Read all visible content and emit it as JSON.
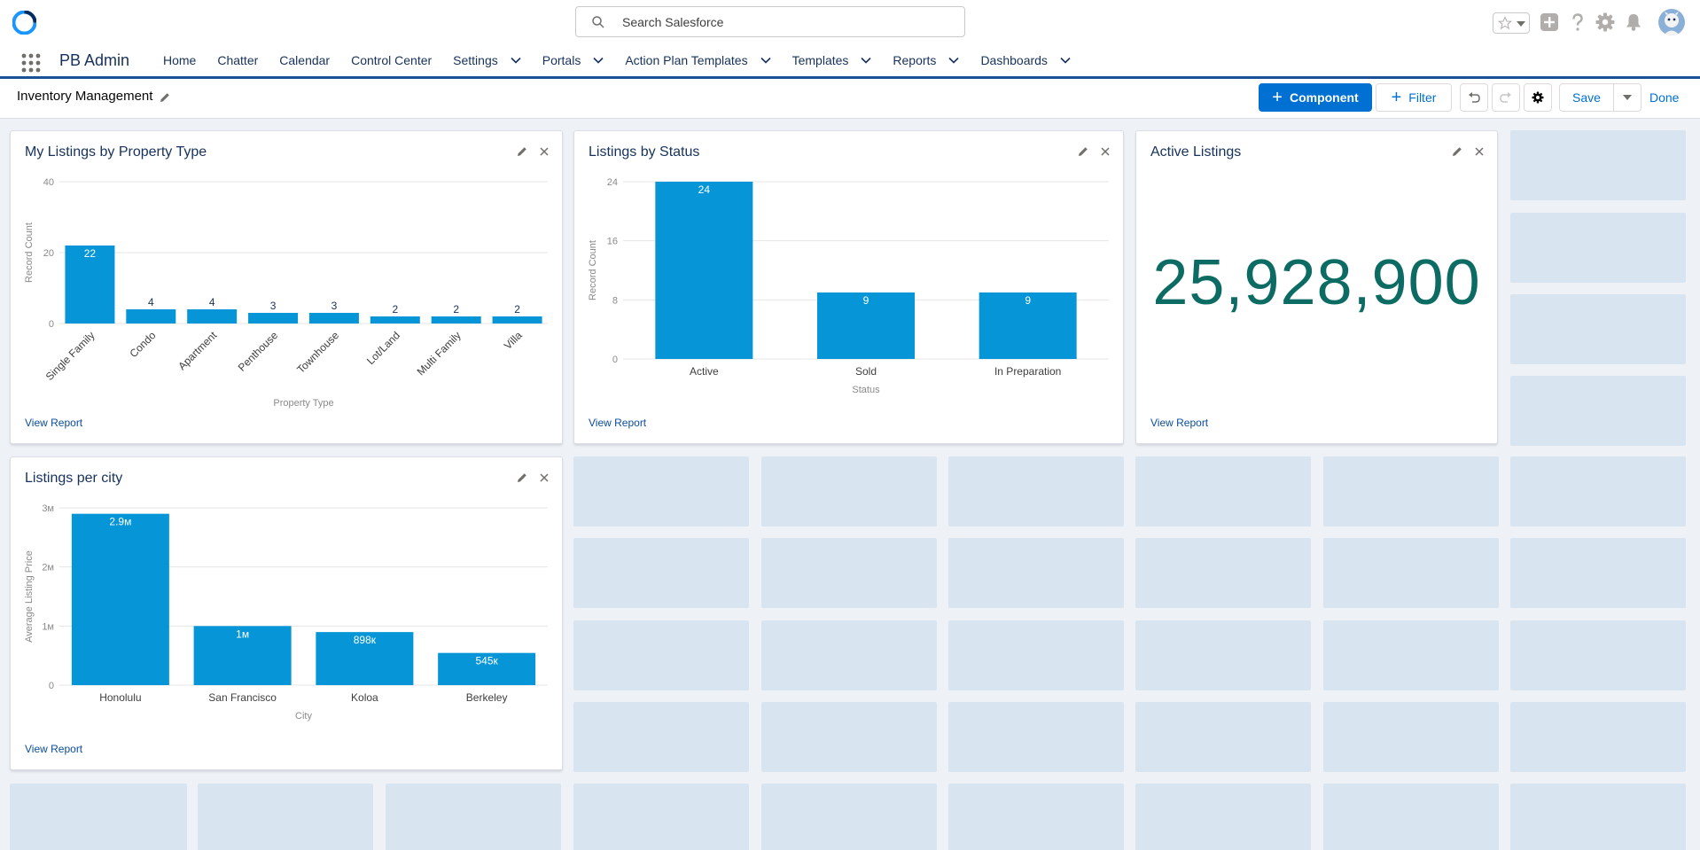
{
  "header": {
    "search_placeholder": "Search Salesforce",
    "logo_icon": "salesforce-logo-icon",
    "icons": [
      "favorites-star-icon",
      "chevron-down-icon",
      "add-icon",
      "help-icon",
      "setup-gear-icon",
      "notifications-bell-icon",
      "user-avatar"
    ]
  },
  "nav": {
    "app_name": "PB Admin",
    "items": [
      {
        "label": "Home",
        "menu": false
      },
      {
        "label": "Chatter",
        "menu": false
      },
      {
        "label": "Calendar",
        "menu": false
      },
      {
        "label": "Control Center",
        "menu": false
      },
      {
        "label": "Settings",
        "menu": true
      },
      {
        "label": "Portals",
        "menu": true
      },
      {
        "label": "Action Plan Templates",
        "menu": true
      },
      {
        "label": "Templates",
        "menu": true
      },
      {
        "label": "Reports",
        "menu": true
      },
      {
        "label": "Dashboards",
        "menu": true
      }
    ]
  },
  "toolbar": {
    "title": "Inventory Management",
    "component_label": "Component",
    "filter_label": "Filter",
    "save_label": "Save",
    "done_label": "Done"
  },
  "colors": {
    "bar": "#0696d7",
    "metric": "#0c6c63",
    "brand": "#0070d2",
    "nav_underline": "#1b5297",
    "grid_cell": "#d8e4f0"
  },
  "cards": {
    "property_type": {
      "title": "My Listings by Property Type",
      "view_report": "View Report"
    },
    "status": {
      "title": "Listings by Status",
      "view_report": "View Report"
    },
    "active": {
      "title": "Active Listings",
      "metric": "25,928,900",
      "view_report": "View Report"
    },
    "city": {
      "title": "Listings per city",
      "view_report": "View Report"
    }
  },
  "chart_data": [
    {
      "id": "property_type",
      "type": "bar",
      "categories": [
        "Single Family",
        "Condo",
        "Apartment",
        "Penthouse",
        "Townhouse",
        "Lot/Land",
        "Multi Family",
        "Villa"
      ],
      "values": [
        22,
        4,
        4,
        3,
        3,
        2,
        2,
        2
      ],
      "data_labels": [
        "22",
        "4",
        "4",
        "3",
        "3",
        "2",
        "2",
        "2"
      ],
      "xlabel": "Property Type",
      "ylabel": "Record Count",
      "ylim": [
        0,
        40
      ],
      "yticks": [
        "0",
        "20",
        "40"
      ],
      "tick_values": [
        0,
        20,
        40
      ],
      "x_label_rotation": -45,
      "grid": true
    },
    {
      "id": "status",
      "type": "bar",
      "categories": [
        "Active",
        "Sold",
        "In Preparation"
      ],
      "values": [
        24,
        9,
        9
      ],
      "data_labels": [
        "24",
        "9",
        "9"
      ],
      "xlabel": "Status",
      "ylabel": "Record Count",
      "ylim": [
        0,
        24
      ],
      "yticks": [
        "0",
        "8",
        "16",
        "24"
      ],
      "tick_values": [
        0,
        8,
        16,
        24
      ],
      "x_label_rotation": 0,
      "grid": true
    },
    {
      "id": "city",
      "type": "bar",
      "categories": [
        "Honolulu",
        "San Francisco",
        "Koloa",
        "Berkeley"
      ],
      "values": [
        2900000,
        1000000,
        898000,
        545000
      ],
      "data_labels": [
        "2.9м",
        "1м",
        "898к",
        "545к"
      ],
      "xlabel": "City",
      "ylabel": "Average Listing Price",
      "ylim": [
        0,
        3000000
      ],
      "yticks": [
        "0",
        "1м",
        "2м",
        "3м"
      ],
      "tick_values": [
        0,
        1000000,
        2000000,
        3000000
      ],
      "x_label_rotation": 0,
      "grid": true
    }
  ]
}
